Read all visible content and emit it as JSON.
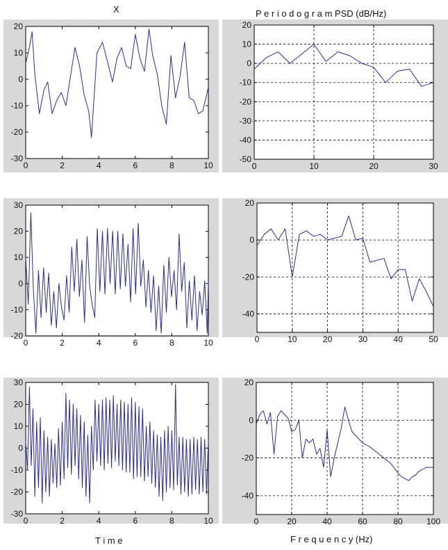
{
  "figure": {
    "left_title": "X",
    "right_title": "P e r i o d o g r a m  PSD (dB/Hz)",
    "left_xlabel": "T i m e",
    "right_xlabel": "F r e q u e n c y (Hz)"
  },
  "colors": {
    "line": "#2a2a9a",
    "panel_bg": "#d8d8d8",
    "axes_bg": "#ffffff",
    "grid": "#000000"
  },
  "chart_data": [
    {
      "type": "line",
      "panel": "time-1",
      "x": [
        0,
        0.2,
        0.35,
        0.5,
        0.75,
        1.0,
        1.2,
        1.45,
        1.7,
        1.95,
        2.2,
        2.45,
        2.7,
        2.95,
        3.2,
        3.45,
        3.6,
        3.9,
        4.2,
        4.5,
        4.75,
        5.0,
        5.25,
        5.5,
        5.75,
        6.0,
        6.25,
        6.5,
        6.75,
        6.95,
        7.2,
        7.45,
        7.7,
        7.95,
        8.2,
        8.45,
        8.7,
        8.95,
        9.2,
        9.45,
        9.7,
        10.0
      ],
      "y": [
        6,
        12,
        18,
        2,
        -13,
        -4,
        -1,
        -13,
        -8,
        -5,
        -10,
        1,
        12,
        5,
        -6,
        -12,
        -22,
        10,
        14,
        6,
        -1,
        8,
        12,
        5,
        4,
        17,
        8,
        3,
        19,
        9,
        2,
        -10,
        -17,
        9,
        -7,
        1,
        14,
        -7,
        -8,
        -13,
        -12,
        -3
      ],
      "xlim": [
        0,
        10
      ],
      "ylim": [
        -30,
        20
      ],
      "xticks": [
        0,
        2,
        4,
        6,
        8,
        10
      ],
      "yticks": [
        20,
        10,
        0,
        -10,
        -20,
        -30
      ],
      "grid": false
    },
    {
      "type": "line",
      "panel": "psd-1",
      "x": [
        0,
        2,
        4,
        6,
        8,
        10,
        12,
        14,
        16,
        18,
        20,
        22,
        24,
        26,
        28,
        30
      ],
      "y": [
        -3,
        3,
        6,
        0,
        5,
        10,
        1,
        6,
        4,
        0,
        -2,
        -10,
        -4,
        -3,
        -12,
        -10
      ],
      "xlim": [
        0,
        30
      ],
      "ylim": [
        -50,
        20
      ],
      "xticks": [
        0,
        10,
        20,
        30
      ],
      "yticks": [
        20,
        10,
        0,
        -10,
        -20,
        -30,
        -40,
        -50
      ],
      "grid": true
    },
    {
      "type": "line",
      "panel": "time-2",
      "x": [
        0,
        0.14,
        0.28,
        0.42,
        0.56,
        0.7,
        0.84,
        0.98,
        1.12,
        1.26,
        1.4,
        1.54,
        1.68,
        1.82,
        1.96,
        2.1,
        2.24,
        2.38,
        2.52,
        2.66,
        2.8,
        2.94,
        3.08,
        3.22,
        3.36,
        3.5,
        3.64,
        3.78,
        3.92,
        4.06,
        4.2,
        4.34,
        4.48,
        4.62,
        4.76,
        4.9,
        5.04,
        5.18,
        5.32,
        5.46,
        5.6,
        5.74,
        5.88,
        6.02,
        6.16,
        6.3,
        6.44,
        6.58,
        6.72,
        6.86,
        7.0,
        7.14,
        7.28,
        7.42,
        7.56,
        7.7,
        7.84,
        7.98,
        8.12,
        8.26,
        8.4,
        8.54,
        8.68,
        8.82,
        8.96,
        9.1,
        9.24,
        9.38,
        9.52,
        9.66,
        9.8,
        9.94,
        10.0
      ],
      "y": [
        10,
        -8,
        27,
        -2,
        -19,
        5,
        -13,
        6,
        -11,
        4,
        -16,
        -3,
        -17,
        0,
        -9,
        -14,
        3,
        -11,
        14,
        -3,
        17,
        -5,
        9,
        -15,
        18,
        -1,
        -8,
        -13,
        21,
        -3,
        20,
        -4,
        21,
        0,
        20,
        -4,
        20,
        -2,
        19,
        -1,
        15,
        -7,
        21,
        -4,
        23,
        -1,
        9,
        -9,
        5,
        -11,
        3,
        -18,
        -1,
        -19,
        7,
        -11,
        10,
        -5,
        5,
        -10,
        19,
        -3,
        8,
        -17,
        1,
        -14,
        3,
        -18,
        -3,
        -12,
        1,
        -19,
        1
      ],
      "xlim": [
        0,
        10
      ],
      "ylim": [
        -20,
        30
      ],
      "xticks": [
        0,
        2,
        4,
        6,
        8,
        10
      ],
      "yticks": [
        30,
        20,
        10,
        0,
        -10,
        -20
      ],
      "grid": false
    },
    {
      "type": "line",
      "panel": "psd-2",
      "x": [
        0,
        2,
        4,
        6,
        8,
        10,
        12,
        14,
        16,
        18,
        20,
        22,
        24,
        26,
        28,
        30,
        32,
        34,
        36,
        38,
        40,
        42,
        44,
        46,
        48,
        50
      ],
      "y": [
        -3,
        3,
        6,
        0,
        6,
        -20,
        3,
        5,
        2,
        3,
        0,
        1,
        2,
        13,
        0,
        1,
        -12,
        -11,
        -10,
        -21,
        -16,
        -16,
        -33,
        -21,
        -28,
        -36
      ],
      "xlim": [
        0,
        50
      ],
      "ylim": [
        -50,
        20
      ],
      "xticks": [
        0,
        10,
        20,
        30,
        40,
        50
      ],
      "yticks": [
        20,
        0,
        -20,
        -40
      ],
      "grid": true
    },
    {
      "type": "line",
      "panel": "time-3",
      "x": [
        0,
        0.1,
        0.2,
        0.3,
        0.4,
        0.5,
        0.6,
        0.7,
        0.8,
        0.9,
        1.0,
        1.1,
        1.2,
        1.3,
        1.4,
        1.5,
        1.6,
        1.7,
        1.8,
        1.9,
        2.0,
        2.1,
        2.2,
        2.3,
        2.4,
        2.5,
        2.6,
        2.7,
        2.8,
        2.9,
        3.0,
        3.1,
        3.2,
        3.3,
        3.4,
        3.5,
        3.6,
        3.7,
        3.8,
        3.9,
        4.0,
        4.1,
        4.2,
        4.3,
        4.4,
        4.5,
        4.6,
        4.7,
        4.8,
        4.9,
        5.0,
        5.1,
        5.2,
        5.3,
        5.4,
        5.5,
        5.6,
        5.7,
        5.8,
        5.9,
        6.0,
        6.1,
        6.2,
        6.3,
        6.4,
        6.5,
        6.6,
        6.7,
        6.8,
        6.9,
        7.0,
        7.1,
        7.2,
        7.3,
        7.4,
        7.5,
        7.6,
        7.7,
        7.8,
        7.9,
        8.0,
        8.1,
        8.2,
        8.3,
        8.4,
        8.5,
        8.6,
        8.7,
        8.8,
        8.9,
        9.0,
        9.1,
        9.2,
        9.3,
        9.4,
        9.5,
        9.6,
        9.7,
        9.8,
        9.9,
        10.0
      ],
      "y": [
        3,
        -10,
        28,
        -8,
        18,
        -22,
        12,
        -18,
        14,
        -25,
        8,
        -20,
        5,
        -22,
        4,
        -16,
        2,
        -18,
        9,
        -17,
        12,
        -14,
        25,
        -9,
        22,
        -12,
        20,
        -8,
        18,
        -14,
        15,
        -18,
        12,
        -22,
        6,
        -25,
        10,
        -10,
        22,
        -6,
        20,
        -8,
        22,
        -10,
        23,
        -7,
        22,
        -9,
        24,
        -6,
        20,
        -8,
        22,
        -10,
        21,
        -11,
        20,
        -11,
        23,
        -14,
        21,
        -13,
        19,
        -13,
        18,
        -15,
        10,
        -13,
        12,
        -16,
        8,
        -18,
        6,
        -22,
        5,
        -24,
        8,
        -20,
        10,
        -18,
        8,
        -19,
        29,
        -17,
        5,
        -21,
        5,
        -20,
        4,
        -22,
        4,
        -21,
        5,
        -19,
        4,
        -21,
        5,
        -20,
        4,
        -21,
        4
      ],
      "xlim": [
        0,
        10
      ],
      "ylim": [
        -30,
        30
      ],
      "xticks": [
        0,
        2,
        4,
        6,
        8,
        10
      ],
      "yticks": [
        30,
        20,
        10,
        0,
        -10,
        -20,
        -30
      ],
      "grid": false
    },
    {
      "type": "line",
      "panel": "psd-3",
      "x": [
        0,
        2,
        4,
        6,
        8,
        10,
        12,
        14,
        16,
        18,
        20,
        22,
        24,
        26,
        28,
        30,
        32,
        34,
        36,
        38,
        40,
        42,
        44,
        46,
        48,
        50,
        52,
        54,
        56,
        60,
        64,
        68,
        72,
        76,
        80,
        82,
        84,
        86,
        88,
        90,
        92,
        94,
        96,
        98,
        100
      ],
      "y": [
        -2,
        3,
        5,
        -2,
        4,
        -18,
        2,
        5,
        3,
        1,
        -6,
        -5,
        0,
        -20,
        -10,
        -12,
        -10,
        -18,
        -15,
        -25,
        -5,
        -30,
        -20,
        -12,
        -4,
        7,
        0,
        -6,
        -8,
        -12,
        -14,
        -17,
        -20,
        -23,
        -28,
        -30,
        -31,
        -32,
        -30,
        -29,
        -27,
        -26,
        -25,
        -25,
        -25
      ],
      "xlim": [
        0,
        100
      ],
      "ylim": [
        -50,
        20
      ],
      "xticks": [
        0,
        20,
        40,
        60,
        80,
        100
      ],
      "yticks": [
        20,
        0,
        -20,
        -40
      ],
      "grid": true
    }
  ]
}
